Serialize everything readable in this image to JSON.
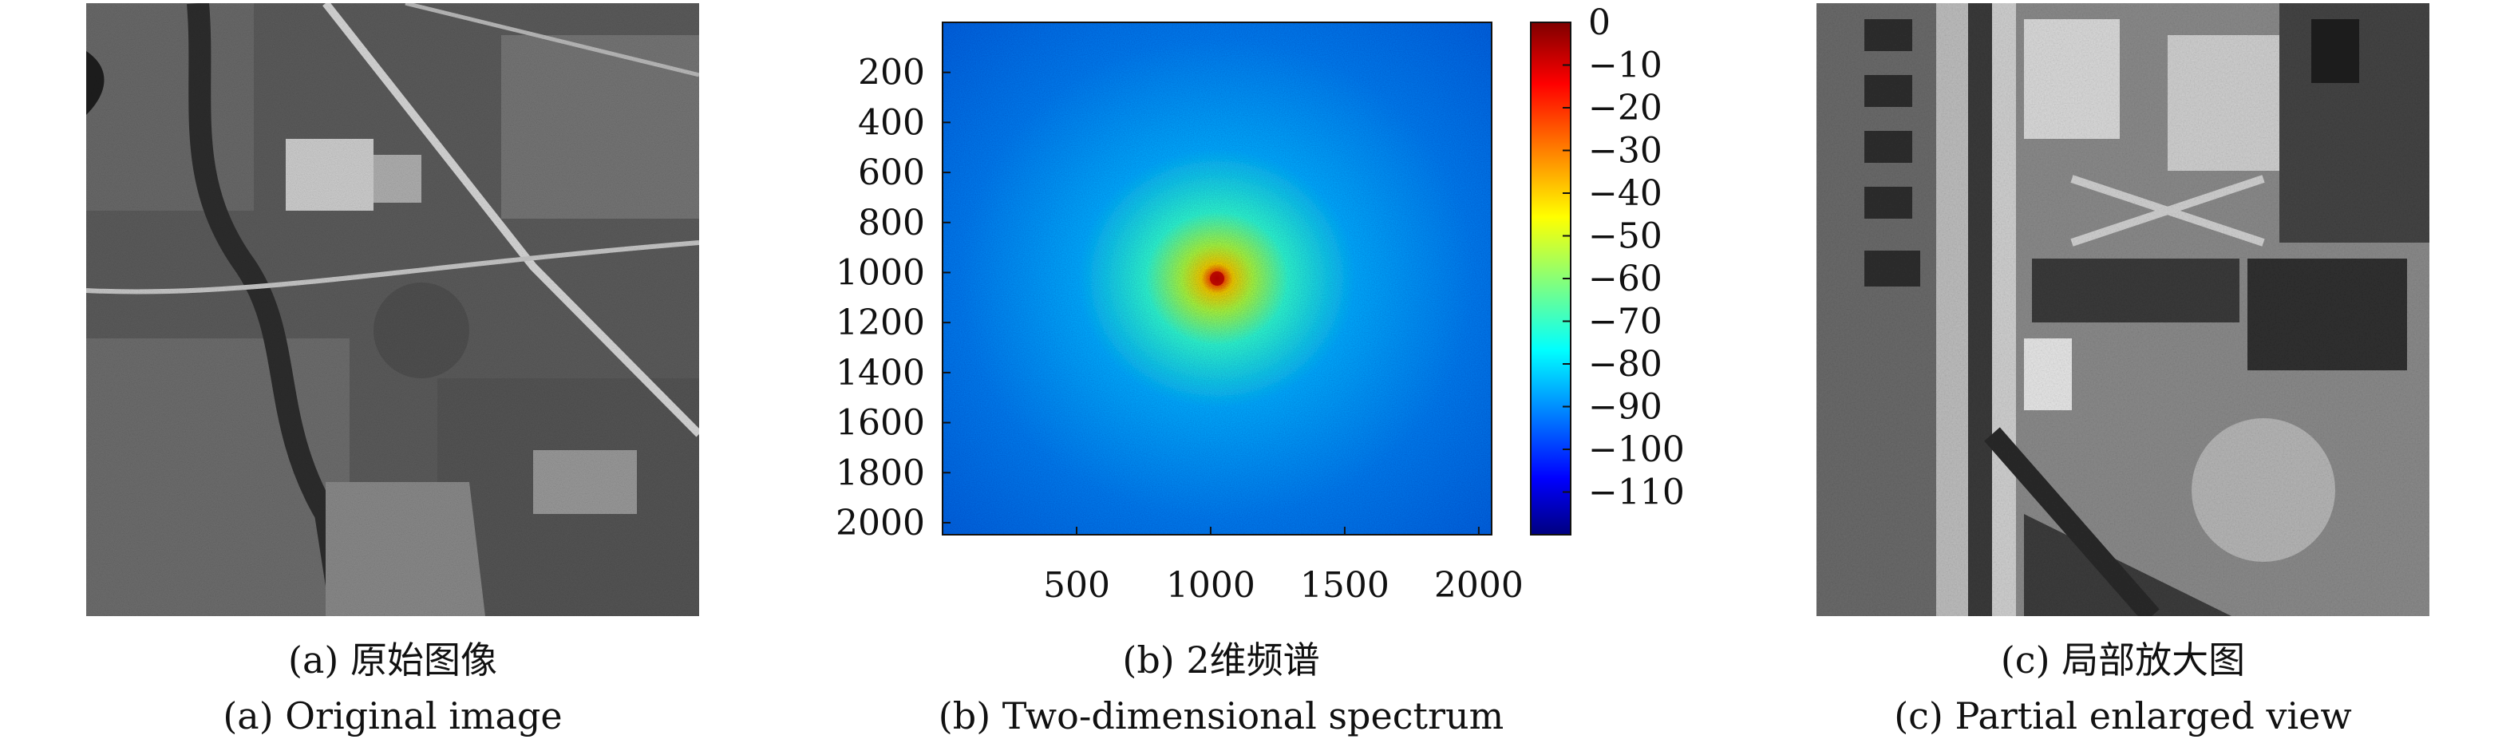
{
  "panels": [
    {
      "caption_cn": "(a) 原始图像",
      "caption_en": "(a) Original image"
    },
    {
      "caption_cn": "(b) 2维频谱",
      "caption_en": "(b) Two-dimensional spectrum"
    },
    {
      "caption_cn": "(c) 局部放大图",
      "caption_en": "(c) Partial enlarged view"
    }
  ],
  "chart_data": {
    "type": "heatmap",
    "title": "",
    "xlabel": "",
    "ylabel": "",
    "x_ticks": [
      500,
      1000,
      1500,
      2000
    ],
    "y_ticks": [
      200,
      400,
      600,
      800,
      1000,
      1200,
      1400,
      1600,
      1800,
      2000
    ],
    "xlim": [
      0,
      2048
    ],
    "ylim": [
      2048,
      0
    ],
    "peak": {
      "x": 1024,
      "y": 1024,
      "value": 0
    },
    "background_value": -90,
    "colorbar": {
      "ticks": [
        0,
        -10,
        -20,
        -30,
        -40,
        -50,
        -60,
        -70,
        -80,
        -90,
        -100,
        -110
      ],
      "tick_labels": [
        "0",
        "−10",
        "−20",
        "−30",
        "−40",
        "−50",
        "−60",
        "−70",
        "−80",
        "−90",
        "−100",
        "−110"
      ],
      "range": [
        -120,
        0
      ],
      "colormap": "jet"
    }
  }
}
